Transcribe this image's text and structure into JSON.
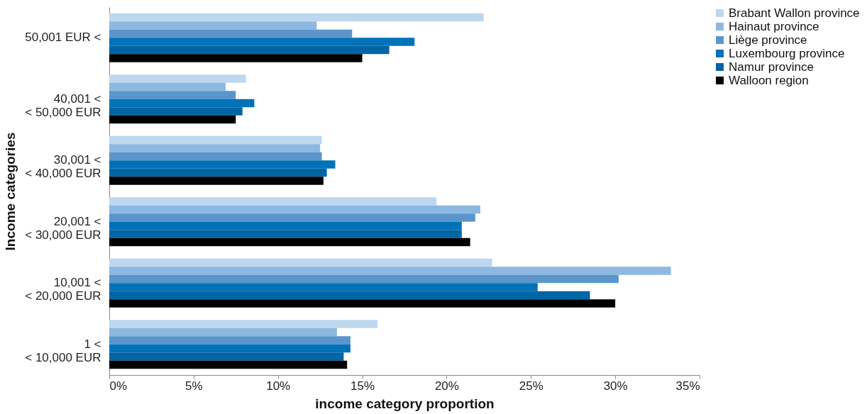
{
  "chart_data": {
    "type": "bar",
    "orientation": "horizontal",
    "xlabel": "income category proportion",
    "ylabel": "Income categories",
    "categories": [
      "50,001 EUR <",
      "40,001 <\n< 50,000 EUR",
      "30,001 <\n< 40,000 EUR",
      "20,001 <\n< 30,000 EUR",
      "10,001 <\n< 20,000 EUR",
      "1 <\n< 10,000 EUR"
    ],
    "series": [
      {
        "name": "Brabant Wallon province",
        "color": "#bdd7ee",
        "values": [
          22.2,
          8.1,
          12.6,
          19.4,
          22.7,
          15.9
        ]
      },
      {
        "name": "Hainaut province",
        "color": "#8db8e2",
        "values": [
          12.3,
          6.9,
          12.5,
          22.0,
          33.3,
          13.5
        ]
      },
      {
        "name": "Liège province",
        "color": "#5a95cb",
        "values": [
          14.4,
          7.5,
          12.6,
          21.7,
          30.2,
          14.3
        ]
      },
      {
        "name": "Luxembourg province",
        "color": "#0072b8",
        "values": [
          18.1,
          8.6,
          13.4,
          20.9,
          25.4,
          14.3
        ]
      },
      {
        "name": "Namur province",
        "color": "#0065a4",
        "values": [
          16.6,
          7.9,
          12.9,
          20.9,
          28.5,
          13.9
        ]
      },
      {
        "name": "Walloon region",
        "color": "#000000",
        "values": [
          15.0,
          7.5,
          12.7,
          21.4,
          30.0,
          14.1
        ]
      }
    ],
    "xlim": [
      0,
      35
    ],
    "xticks": [
      {
        "value": 0,
        "label": "0%"
      },
      {
        "value": 5,
        "label": "5%"
      },
      {
        "value": 10,
        "label": "10%"
      },
      {
        "value": 15,
        "label": "15%"
      },
      {
        "value": 20,
        "label": "20%"
      },
      {
        "value": 25,
        "label": "25%"
      },
      {
        "value": 30,
        "label": "30%"
      },
      {
        "value": 35,
        "label": "35%"
      }
    ],
    "grid": false,
    "legend": "right"
  }
}
